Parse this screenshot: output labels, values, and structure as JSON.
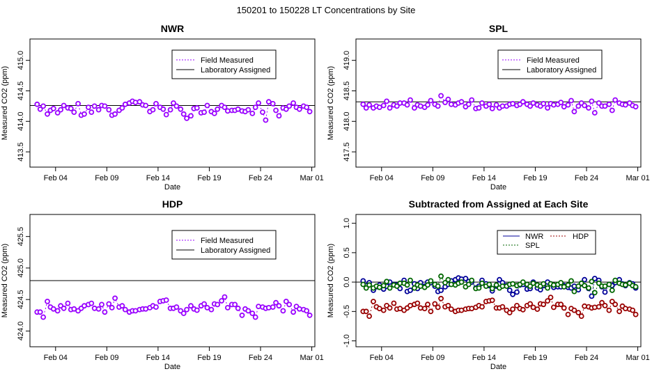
{
  "figure_title": "150201  to  150228 LT Concentrations by Site",
  "colors": {
    "field": "#9900ff",
    "point_fill": "#ffffff",
    "lab_line": "#000000",
    "NWR": "#000099",
    "SPL": "#006600",
    "HDP": "#990000"
  },
  "chart_data": [
    {
      "type": "scatter",
      "site": "NWR",
      "title": "NWR",
      "xlabel": "Date",
      "ylabel": "Measured CO2 (ppm)",
      "x_unit": "days in Feb 2015",
      "xlim": [
        1.5,
        29.3
      ],
      "ylim": [
        413.25,
        415.35
      ],
      "xticks": [
        {
          "x": 4,
          "label": "Feb 04"
        },
        {
          "x": 9,
          "label": "Feb 09"
        },
        {
          "x": 14,
          "label": "Feb 14"
        },
        {
          "x": 19,
          "label": "Feb 19"
        },
        {
          "x": 24,
          "label": "Feb 24"
        },
        {
          "x": 29,
          "label": "Mar 01"
        }
      ],
      "yticks": [
        413.5,
        414.0,
        414.5,
        415.0
      ],
      "ytick_labels": [
        "413.5",
        "414.0",
        "414.5",
        "415.0"
      ],
      "assigned": 414.26,
      "legend": [
        "Field Measured",
        "Laboratory Assigned"
      ],
      "legend_position": "top-right",
      "x": [
        2.2,
        2.5,
        2.8,
        3.2,
        3.5,
        3.8,
        4.2,
        4.5,
        4.8,
        5.2,
        5.5,
        5.8,
        6.2,
        6.5,
        6.8,
        7.2,
        7.5,
        7.8,
        8.2,
        8.5,
        8.8,
        9.2,
        9.5,
        9.8,
        10.2,
        10.5,
        10.8,
        11.2,
        11.5,
        11.8,
        12.2,
        12.5,
        12.8,
        13.2,
        13.5,
        13.8,
        14.2,
        14.5,
        14.8,
        15.2,
        15.5,
        15.8,
        16.2,
        16.5,
        16.8,
        17.2,
        17.5,
        17.8,
        18.2,
        18.5,
        18.8,
        19.2,
        19.5,
        19.8,
        20.2,
        20.5,
        20.8,
        21.2,
        21.5,
        21.8,
        22.2,
        22.5,
        22.8,
        23.2,
        23.5,
        23.8,
        24.2,
        24.5,
        24.8,
        25.2,
        25.5,
        25.8,
        26.2,
        26.5,
        26.8,
        27.2,
        27.5,
        27.8,
        28.2,
        28.5,
        28.8
      ],
      "values": [
        414.28,
        414.2,
        414.25,
        414.12,
        414.18,
        414.21,
        414.14,
        414.19,
        414.26,
        414.22,
        414.21,
        414.15,
        414.29,
        414.1,
        414.12,
        414.23,
        414.15,
        414.25,
        414.19,
        414.26,
        414.25,
        414.19,
        414.1,
        414.12,
        414.18,
        414.22,
        414.28,
        414.3,
        414.33,
        414.31,
        414.32,
        414.27,
        414.26,
        414.16,
        414.19,
        414.29,
        414.23,
        414.2,
        414.11,
        414.19,
        414.3,
        414.25,
        414.2,
        414.12,
        414.05,
        414.09,
        414.21,
        414.22,
        414.14,
        414.15,
        414.26,
        414.16,
        414.13,
        414.2,
        414.26,
        414.23,
        414.17,
        414.18,
        414.18,
        414.2,
        414.17,
        414.16,
        414.19,
        414.13,
        414.23,
        414.3,
        414.15,
        414.02,
        414.32,
        414.29,
        414.18,
        414.09,
        414.22,
        414.2,
        414.25,
        414.3,
        414.23,
        414.2,
        414.25,
        414.23,
        414.16
      ]
    },
    {
      "type": "scatter",
      "site": "SPL",
      "title": "SPL",
      "xlabel": "Date",
      "ylabel": "Measured CO2 (ppm)",
      "x_unit": "days in Feb 2015",
      "xlim": [
        1.5,
        29.3
      ],
      "ylim": [
        417.25,
        419.35
      ],
      "xticks": [
        {
          "x": 4,
          "label": "Feb 04"
        },
        {
          "x": 9,
          "label": "Feb 09"
        },
        {
          "x": 14,
          "label": "Feb 14"
        },
        {
          "x": 19,
          "label": "Feb 19"
        },
        {
          "x": 24,
          "label": "Feb 24"
        },
        {
          "x": 29,
          "label": "Mar 01"
        }
      ],
      "yticks": [
        417.5,
        418.0,
        418.5,
        419.0
      ],
      "ytick_labels": [
        "417.5",
        "418.0",
        "418.5",
        "419.0"
      ],
      "assigned": 418.32,
      "legend": [
        "Field Measured",
        "Laboratory Assigned"
      ],
      "legend_position": "top-right",
      "x": [
        2.2,
        2.5,
        2.8,
        3.2,
        3.5,
        3.8,
        4.2,
        4.5,
        4.8,
        5.2,
        5.5,
        5.8,
        6.2,
        6.5,
        6.8,
        7.2,
        7.5,
        7.8,
        8.2,
        8.5,
        8.8,
        9.2,
        9.5,
        9.8,
        10.2,
        10.5,
        10.8,
        11.2,
        11.5,
        11.8,
        12.2,
        12.5,
        12.8,
        13.2,
        13.5,
        13.8,
        14.2,
        14.5,
        14.8,
        15.2,
        15.5,
        15.8,
        16.2,
        16.5,
        16.8,
        17.2,
        17.5,
        17.8,
        18.2,
        18.5,
        18.8,
        19.2,
        19.5,
        19.8,
        20.2,
        20.5,
        20.8,
        21.2,
        21.5,
        21.8,
        22.2,
        22.5,
        22.8,
        23.2,
        23.5,
        23.8,
        24.2,
        24.5,
        24.8,
        25.2,
        25.5,
        25.8,
        26.2,
        26.5,
        26.8,
        27.2,
        27.5,
        27.8,
        28.2,
        28.5,
        28.8
      ],
      "values": [
        418.28,
        418.22,
        418.27,
        418.22,
        418.25,
        418.23,
        418.26,
        418.33,
        418.22,
        418.27,
        418.25,
        418.3,
        418.3,
        418.27,
        418.35,
        418.22,
        418.27,
        418.25,
        418.23,
        418.27,
        418.34,
        418.28,
        418.25,
        418.42,
        418.31,
        418.36,
        418.28,
        418.27,
        418.3,
        418.32,
        418.24,
        418.28,
        418.35,
        418.21,
        418.22,
        418.3,
        418.25,
        418.28,
        418.21,
        418.27,
        418.22,
        418.25,
        418.25,
        418.28,
        418.29,
        418.26,
        418.28,
        418.32,
        418.28,
        418.25,
        418.3,
        418.27,
        418.25,
        418.29,
        418.22,
        418.29,
        418.27,
        418.28,
        418.31,
        418.24,
        418.27,
        418.34,
        418.16,
        418.25,
        418.3,
        418.26,
        418.22,
        418.33,
        418.14,
        418.3,
        418.25,
        418.25,
        418.28,
        418.18,
        418.35,
        418.3,
        418.28,
        418.27,
        418.3,
        418.26,
        418.24
      ]
    },
    {
      "type": "scatter",
      "site": "HDP",
      "title": "HDP",
      "xlabel": "Date",
      "ylabel": "Measured CO2 (ppm)",
      "x_unit": "days in Feb 2015",
      "xlim": [
        1.5,
        29.3
      ],
      "ylim": [
        423.75,
        425.85
      ],
      "xticks": [
        {
          "x": 4,
          "label": "Feb 04"
        },
        {
          "x": 9,
          "label": "Feb 09"
        },
        {
          "x": 14,
          "label": "Feb 14"
        },
        {
          "x": 19,
          "label": "Feb 19"
        },
        {
          "x": 24,
          "label": "Feb 24"
        },
        {
          "x": 29,
          "label": "Mar 01"
        }
      ],
      "yticks": [
        424.0,
        424.5,
        425.0,
        425.5
      ],
      "ytick_labels": [
        "424.0",
        "424.5",
        "425.0",
        "425.5"
      ],
      "assigned": 424.8,
      "legend": [
        "Field Measured",
        "Laboratory Assigned"
      ],
      "legend_position": "top-right",
      "x": [
        2.2,
        2.5,
        2.8,
        3.2,
        3.5,
        3.8,
        4.2,
        4.5,
        4.8,
        5.2,
        5.5,
        5.8,
        6.2,
        6.5,
        6.8,
        7.2,
        7.5,
        7.8,
        8.2,
        8.5,
        8.8,
        9.2,
        9.5,
        9.8,
        10.2,
        10.5,
        10.8,
        11.2,
        11.5,
        11.8,
        12.2,
        12.5,
        12.8,
        13.2,
        13.5,
        13.8,
        14.2,
        14.5,
        14.8,
        15.2,
        15.5,
        15.8,
        16.2,
        16.5,
        16.8,
        17.2,
        17.5,
        17.8,
        18.2,
        18.5,
        18.8,
        19.2,
        19.5,
        19.8,
        20.2,
        20.5,
        20.8,
        21.2,
        21.5,
        21.8,
        22.2,
        22.5,
        22.8,
        23.2,
        23.5,
        23.8,
        24.2,
        24.5,
        24.8,
        25.2,
        25.5,
        25.8,
        26.2,
        26.5,
        26.8,
        27.2,
        27.5,
        27.8,
        28.2,
        28.5,
        28.8
      ],
      "values": [
        424.3,
        424.3,
        424.22,
        424.47,
        424.38,
        424.35,
        424.32,
        424.4,
        424.36,
        424.44,
        424.34,
        424.35,
        424.32,
        424.36,
        424.4,
        424.42,
        424.44,
        424.36,
        424.35,
        424.42,
        424.3,
        424.43,
        424.37,
        424.52,
        424.38,
        424.4,
        424.34,
        424.3,
        424.32,
        424.32,
        424.34,
        424.35,
        424.35,
        424.37,
        424.4,
        424.38,
        424.47,
        424.48,
        424.49,
        424.36,
        424.36,
        424.38,
        424.32,
        424.28,
        424.34,
        424.4,
        424.35,
        424.33,
        424.4,
        424.43,
        424.37,
        424.34,
        424.43,
        424.42,
        424.48,
        424.54,
        424.37,
        424.42,
        424.42,
        424.36,
        424.25,
        424.35,
        424.32,
        424.28,
        424.22,
        424.39,
        424.38,
        424.36,
        424.37,
        424.38,
        424.45,
        424.4,
        424.32,
        424.47,
        424.42,
        424.3,
        424.39,
        424.35,
        424.34,
        424.32,
        424.25
      ]
    },
    {
      "type": "scatter",
      "title": "Subtracted from Assigned at Each Site",
      "xlabel": "Date",
      "ylabel": "Measured CO2 (ppm)",
      "x_unit": "days in Feb 2015",
      "xlim": [
        1.5,
        29.3
      ],
      "ylim": [
        -1.1,
        1.15
      ],
      "xticks": [
        {
          "x": 4,
          "label": "Feb 04"
        },
        {
          "x": 9,
          "label": "Feb 09"
        },
        {
          "x": 14,
          "label": "Feb 14"
        },
        {
          "x": 19,
          "label": "Feb 19"
        },
        {
          "x": 24,
          "label": "Feb 24"
        },
        {
          "x": 29,
          "label": "Mar 01"
        }
      ],
      "yticks": [
        -1.0,
        -0.5,
        0.0,
        0.5,
        1.0
      ],
      "ytick_labels": [
        "-1.0",
        "-0.5",
        "0.0",
        "0.5",
        "1.0"
      ],
      "reference_line": 0,
      "legend_position": "top-right",
      "series": [
        {
          "name": "NWR",
          "values": [
            0.02,
            -0.06,
            -0.01,
            -0.14,
            -0.08,
            -0.05,
            -0.12,
            -0.07,
            0.0,
            -0.04,
            -0.05,
            -0.11,
            0.03,
            -0.16,
            -0.14,
            -0.03,
            -0.11,
            -0.01,
            -0.07,
            0.0,
            -0.01,
            -0.07,
            -0.16,
            -0.14,
            -0.08,
            -0.04,
            0.02,
            0.04,
            0.07,
            0.05,
            0.06,
            0.01,
            0.0,
            -0.1,
            -0.07,
            0.03,
            -0.03,
            -0.06,
            -0.15,
            -0.07,
            0.04,
            -0.01,
            -0.06,
            -0.14,
            -0.21,
            -0.17,
            -0.05,
            -0.04,
            -0.12,
            -0.11,
            0.0,
            -0.1,
            -0.13,
            -0.06,
            0.0,
            -0.03,
            -0.09,
            -0.08,
            -0.08,
            -0.06,
            -0.09,
            -0.1,
            -0.07,
            -0.13,
            -0.03,
            0.04,
            -0.11,
            -0.24,
            0.06,
            0.03,
            -0.08,
            -0.17,
            -0.04,
            -0.06,
            -0.01,
            0.04,
            -0.03,
            -0.06,
            -0.01,
            -0.03,
            -0.1
          ]
        },
        {
          "name": "SPL",
          "values": [
            -0.04,
            -0.1,
            -0.05,
            -0.1,
            -0.07,
            -0.09,
            -0.06,
            0.01,
            -0.1,
            -0.05,
            -0.07,
            -0.02,
            -0.02,
            -0.05,
            0.03,
            -0.1,
            -0.05,
            -0.07,
            -0.09,
            -0.05,
            0.02,
            -0.04,
            -0.07,
            0.1,
            -0.01,
            0.04,
            -0.04,
            -0.05,
            -0.02,
            0.0,
            -0.08,
            -0.04,
            0.03,
            -0.11,
            -0.1,
            -0.02,
            -0.07,
            -0.04,
            -0.11,
            -0.05,
            -0.1,
            -0.07,
            -0.07,
            -0.04,
            -0.03,
            -0.06,
            -0.04,
            0.0,
            -0.04,
            -0.07,
            -0.02,
            -0.05,
            -0.07,
            -0.03,
            -0.1,
            -0.03,
            -0.05,
            -0.04,
            -0.01,
            -0.08,
            -0.05,
            0.02,
            -0.16,
            -0.07,
            -0.02,
            -0.06,
            -0.1,
            0.01,
            -0.18,
            -0.02,
            -0.07,
            -0.07,
            -0.04,
            -0.14,
            0.03,
            -0.02,
            -0.04,
            -0.05,
            -0.02,
            -0.06,
            -0.08
          ]
        },
        {
          "name": "HDP",
          "values": [
            -0.5,
            -0.5,
            -0.58,
            -0.33,
            -0.42,
            -0.45,
            -0.48,
            -0.4,
            -0.44,
            -0.36,
            -0.46,
            -0.45,
            -0.48,
            -0.44,
            -0.4,
            -0.38,
            -0.36,
            -0.44,
            -0.45,
            -0.38,
            -0.5,
            -0.37,
            -0.43,
            -0.28,
            -0.42,
            -0.4,
            -0.46,
            -0.5,
            -0.48,
            -0.48,
            -0.46,
            -0.45,
            -0.45,
            -0.43,
            -0.4,
            -0.42,
            -0.33,
            -0.32,
            -0.31,
            -0.44,
            -0.44,
            -0.42,
            -0.48,
            -0.52,
            -0.46,
            -0.4,
            -0.45,
            -0.47,
            -0.4,
            -0.37,
            -0.43,
            -0.46,
            -0.37,
            -0.38,
            -0.32,
            -0.26,
            -0.43,
            -0.38,
            -0.38,
            -0.44,
            -0.55,
            -0.45,
            -0.48,
            -0.52,
            -0.58,
            -0.41,
            -0.42,
            -0.44,
            -0.43,
            -0.42,
            -0.35,
            -0.4,
            -0.48,
            -0.33,
            -0.38,
            -0.5,
            -0.41,
            -0.45,
            -0.46,
            -0.48,
            -0.55
          ]
        }
      ]
    }
  ]
}
